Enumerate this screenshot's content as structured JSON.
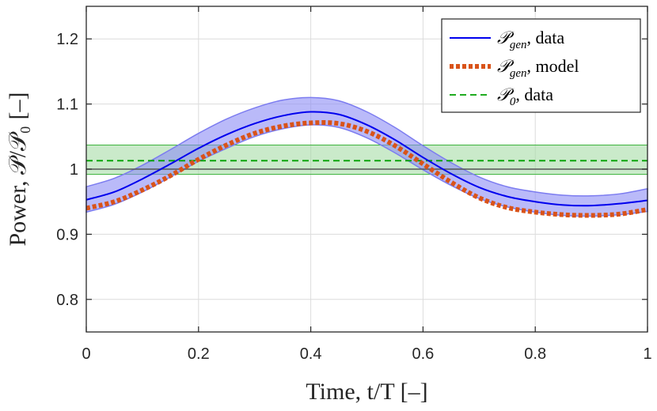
{
  "chart_data": {
    "type": "line",
    "xlabel": "Time, t/T [–]",
    "ylabel": "Power, 𝒫/𝒫₀ [–]",
    "xlim": [
      0,
      1
    ],
    "ylim": [
      0.75,
      1.25
    ],
    "grid": true,
    "legend_position": "top-right",
    "x_ticks": [
      0,
      0.2,
      0.4,
      0.6,
      0.8,
      1
    ],
    "x_tick_labels": [
      "0",
      "0.2",
      "0.4",
      "0.6",
      "0.8",
      "1"
    ],
    "y_ticks": [
      0.8,
      0.9,
      1.0,
      1.1,
      1.2
    ],
    "y_tick_labels": [
      "0.8",
      "0.9",
      "1",
      "1.1",
      "1.2"
    ],
    "x": [
      0,
      0.05,
      0.1,
      0.15,
      0.2,
      0.25,
      0.3,
      0.35,
      0.4,
      0.45,
      0.5,
      0.55,
      0.6,
      0.65,
      0.7,
      0.75,
      0.8,
      0.85,
      0.9,
      0.95,
      1.0
    ],
    "series": [
      {
        "name": "𝒫_gen, data",
        "style": "solid",
        "color": "#0000ee",
        "values": [
          0.953,
          0.965,
          0.985,
          1.008,
          1.032,
          1.053,
          1.07,
          1.082,
          1.088,
          1.084,
          1.068,
          1.045,
          1.018,
          0.993,
          0.972,
          0.958,
          0.95,
          0.945,
          0.944,
          0.947,
          0.952
        ],
        "band_upper": [
          0.973,
          0.986,
          1.006,
          1.03,
          1.055,
          1.077,
          1.094,
          1.106,
          1.11,
          1.105,
          1.088,
          1.064,
          1.036,
          1.01,
          0.988,
          0.973,
          0.965,
          0.96,
          0.959,
          0.962,
          0.97
        ],
        "band_lower": [
          0.934,
          0.946,
          0.965,
          0.988,
          1.012,
          1.032,
          1.05,
          1.062,
          1.068,
          1.064,
          1.048,
          1.025,
          0.999,
          0.975,
          0.955,
          0.942,
          0.934,
          0.929,
          0.928,
          0.93,
          0.935
        ],
        "band_color": "#8c8cf5"
      },
      {
        "name": "𝒫_gen, model",
        "style": "dotted",
        "color": "#d95319",
        "values": [
          0.94,
          0.95,
          0.968,
          0.99,
          1.015,
          1.037,
          1.055,
          1.066,
          1.071,
          1.07,
          1.058,
          1.036,
          1.008,
          0.98,
          0.956,
          0.941,
          0.934,
          0.93,
          0.929,
          0.931,
          0.938
        ]
      },
      {
        "name": "𝒫₀, data",
        "style": "dashed",
        "color": "#00a000",
        "values": [
          1.013,
          1.013,
          1.013,
          1.013,
          1.013,
          1.013,
          1.013,
          1.013,
          1.013,
          1.013,
          1.013,
          1.013,
          1.013,
          1.013,
          1.013,
          1.013,
          1.013,
          1.013,
          1.013,
          1.013,
          1.013
        ],
        "band_upper": 1.037,
        "band_lower": 0.992,
        "band_color": "#9fd99f"
      }
    ],
    "reference_line": {
      "y": 1.0,
      "color": "#555555"
    }
  },
  "legend": {
    "entries": [
      {
        "label_main": "𝒫",
        "label_sub": "gen",
        "label_rest": ", data"
      },
      {
        "label_main": "𝒫",
        "label_sub": "gen",
        "label_rest": ", model"
      },
      {
        "label_main": "𝒫",
        "label_sub": "0",
        "label_rest": ", data"
      }
    ]
  }
}
